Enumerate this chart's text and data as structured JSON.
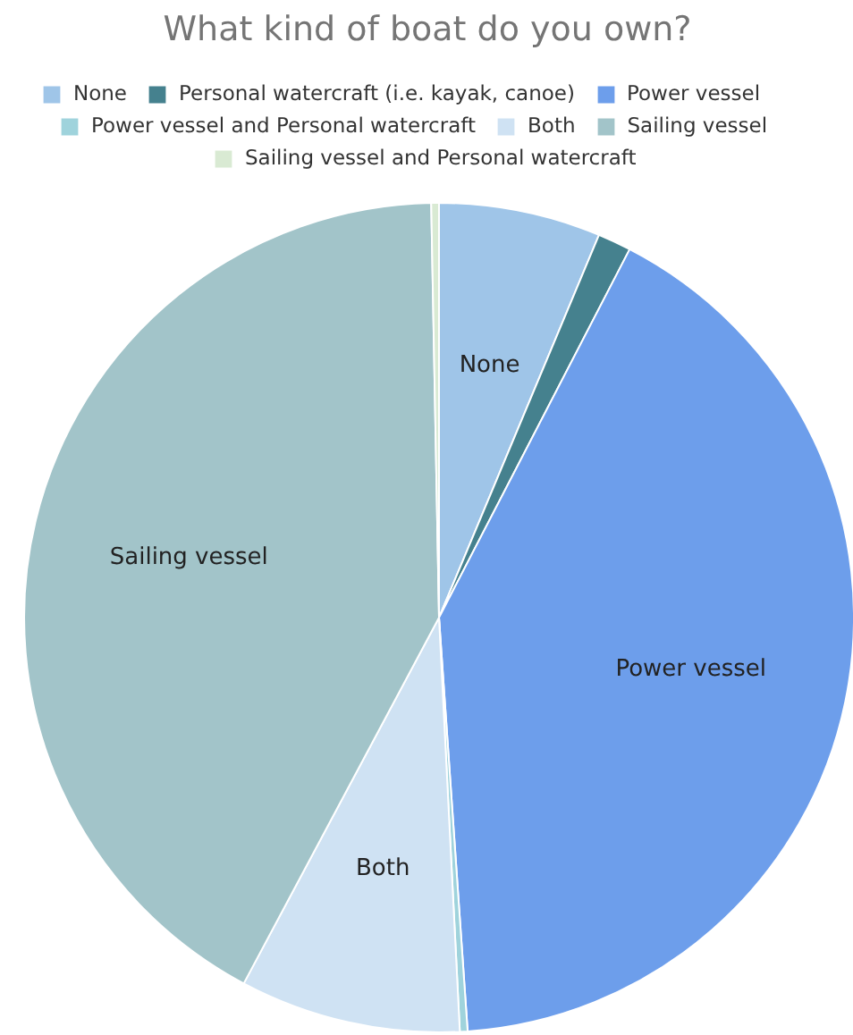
{
  "chart_data": {
    "type": "pie",
    "title": "What kind of boat do you own?",
    "categories": [
      "None",
      "Personal watercraft (i.e. kayak, canoe)",
      "Power vessel",
      "Power vessel and Personal watercraft",
      "Both",
      "Sailing vessel",
      "Sailing vessel and Personal watercraft"
    ],
    "values": [
      6.3,
      1.3,
      41.3,
      0.3,
      8.6,
      41.9,
      0.3
    ],
    "colors": [
      "#9fc5e8",
      "#45818e",
      "#6d9eeb",
      "#9fd3dc",
      "#cfe2f3",
      "#a2c4c9",
      "#d9ead3"
    ],
    "legend": "top"
  }
}
